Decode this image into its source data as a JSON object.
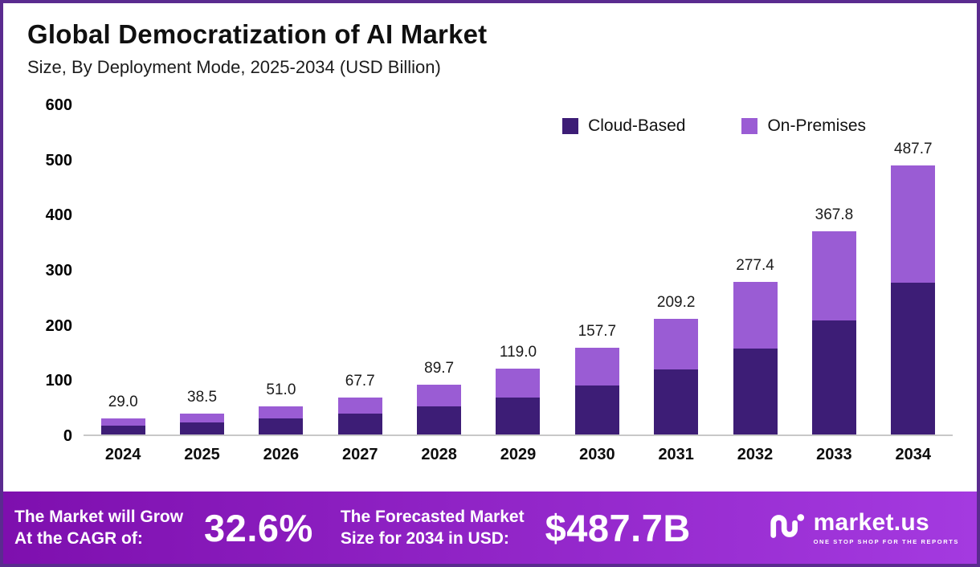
{
  "header": {
    "title": "Global Democratization of AI Market",
    "subtitle": "Size, By Deployment Mode, 2025-2034 (USD Billion)"
  },
  "colors": {
    "bar_dark": "#3d1d76",
    "bar_light": "#9a5cd4",
    "banner_gradient_start": "#7e0fae",
    "banner_gradient_end": "#a43ae0",
    "frame_border": "#5a2b8f"
  },
  "chart_data": {
    "type": "bar",
    "stacked": true,
    "title": "Global Democratization of AI Market Size, By Deployment Mode, 2025-2034 (USD Billion)",
    "categories": [
      "2024",
      "2025",
      "2026",
      "2027",
      "2028",
      "2029",
      "2030",
      "2031",
      "2032",
      "2033",
      "2034"
    ],
    "series": [
      {
        "name": "Cloud-Based",
        "color": "#3d1d76",
        "values": [
          16.3,
          21.7,
          28.7,
          38.1,
          50.5,
          67.0,
          88.8,
          117.8,
          156.2,
          207.1,
          274.6
        ]
      },
      {
        "name": "On-Premises",
        "color": "#9a5cd4",
        "values": [
          12.7,
          16.8,
          22.3,
          29.6,
          39.2,
          52.0,
          68.9,
          91.4,
          121.2,
          160.7,
          213.1
        ]
      }
    ],
    "totals": [
      29.0,
      38.5,
      51.0,
      67.7,
      89.7,
      119.0,
      157.7,
      209.2,
      277.4,
      367.8,
      487.7
    ],
    "ylim": [
      0,
      600
    ],
    "yticks": [
      0,
      100,
      200,
      300,
      400,
      500,
      600
    ],
    "grid": false,
    "legend_position": "top-right",
    "xlabel": "",
    "ylabel": ""
  },
  "footer": {
    "cagr_line1": "The Market will Grow",
    "cagr_line2": "At the CAGR of:",
    "cagr_value": "32.6%",
    "forecast_line1": "The Forecasted Market",
    "forecast_line2": "Size for 2034 in USD:",
    "forecast_value": "$487.7B",
    "brand": "market.us",
    "brand_tagline": "ONE STOP SHOP FOR THE REPORTS"
  }
}
